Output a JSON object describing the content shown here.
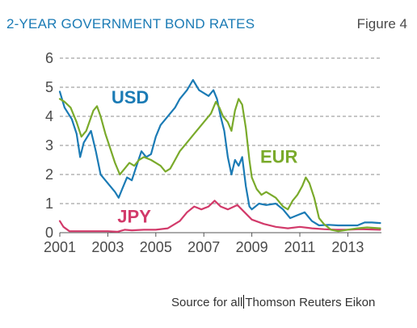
{
  "header": {
    "title": "2-YEAR GOVERNMENT BOND RATES",
    "figure_label": "Figure 4"
  },
  "footer": {
    "source_prefix": "Source for all",
    "source_suffix": "Thomson Reuters Eikon"
  },
  "colors": {
    "USD": "#1b7bb5",
    "EUR": "#7aaa2b",
    "JPY": "#d23a6a",
    "grid": "#8c8c8c",
    "axis_text": "#4a4a4a"
  },
  "chart_data": {
    "type": "line",
    "title": "2-YEAR GOVERNMENT BOND RATES",
    "xlabel": "",
    "ylabel": "",
    "xlim": [
      2001,
      2014.4
    ],
    "ylim": [
      0,
      6
    ],
    "x_ticks": [
      "2001",
      "2003",
      "2005",
      "2007",
      "2009",
      "2011",
      "2013"
    ],
    "y_ticks": [
      "0",
      "1",
      "2",
      "3",
      "4",
      "5",
      "6"
    ],
    "grid": true,
    "legend": "inline labels",
    "series": [
      {
        "name": "USD",
        "points": [
          [
            2001.0,
            4.85
          ],
          [
            2001.2,
            4.3
          ],
          [
            2001.5,
            3.9
          ],
          [
            2001.7,
            3.4
          ],
          [
            2001.85,
            2.6
          ],
          [
            2002.0,
            3.1
          ],
          [
            2002.3,
            3.5
          ],
          [
            2002.5,
            2.8
          ],
          [
            2002.7,
            2.0
          ],
          [
            2002.9,
            1.8
          ],
          [
            2003.1,
            1.6
          ],
          [
            2003.3,
            1.4
          ],
          [
            2003.45,
            1.2
          ],
          [
            2003.6,
            1.5
          ],
          [
            2003.8,
            1.9
          ],
          [
            2004.0,
            1.8
          ],
          [
            2004.2,
            2.3
          ],
          [
            2004.4,
            2.8
          ],
          [
            2004.6,
            2.6
          ],
          [
            2004.8,
            2.7
          ],
          [
            2005.0,
            3.3
          ],
          [
            2005.2,
            3.7
          ],
          [
            2005.4,
            3.9
          ],
          [
            2005.6,
            4.1
          ],
          [
            2005.8,
            4.3
          ],
          [
            2006.0,
            4.6
          ],
          [
            2006.3,
            4.9
          ],
          [
            2006.55,
            5.25
          ],
          [
            2006.8,
            4.9
          ],
          [
            2007.0,
            4.8
          ],
          [
            2007.2,
            4.7
          ],
          [
            2007.4,
            4.9
          ],
          [
            2007.55,
            4.6
          ],
          [
            2007.7,
            4.0
          ],
          [
            2007.85,
            3.5
          ],
          [
            2008.0,
            2.6
          ],
          [
            2008.15,
            2.0
          ],
          [
            2008.3,
            2.5
          ],
          [
            2008.45,
            2.3
          ],
          [
            2008.6,
            2.6
          ],
          [
            2008.75,
            1.6
          ],
          [
            2008.9,
            0.9
          ],
          [
            2009.0,
            0.8
          ],
          [
            2009.3,
            1.0
          ],
          [
            2009.6,
            0.95
          ],
          [
            2010.0,
            1.0
          ],
          [
            2010.3,
            0.8
          ],
          [
            2010.6,
            0.5
          ],
          [
            2010.9,
            0.6
          ],
          [
            2011.2,
            0.7
          ],
          [
            2011.5,
            0.4
          ],
          [
            2011.8,
            0.25
          ],
          [
            2012.2,
            0.27
          ],
          [
            2012.6,
            0.25
          ],
          [
            2013.0,
            0.25
          ],
          [
            2013.4,
            0.25
          ],
          [
            2013.7,
            0.35
          ],
          [
            2014.0,
            0.35
          ],
          [
            2014.35,
            0.33
          ]
        ]
      },
      {
        "name": "EUR",
        "points": [
          [
            2001.0,
            4.6
          ],
          [
            2001.2,
            4.5
          ],
          [
            2001.45,
            4.3
          ],
          [
            2001.7,
            3.8
          ],
          [
            2001.9,
            3.3
          ],
          [
            2002.1,
            3.5
          ],
          [
            2002.4,
            4.2
          ],
          [
            2002.55,
            4.35
          ],
          [
            2002.7,
            4.0
          ],
          [
            2002.9,
            3.4
          ],
          [
            2003.1,
            2.9
          ],
          [
            2003.3,
            2.4
          ],
          [
            2003.5,
            2.0
          ],
          [
            2003.7,
            2.2
          ],
          [
            2003.9,
            2.4
          ],
          [
            2004.1,
            2.3
          ],
          [
            2004.3,
            2.5
          ],
          [
            2004.5,
            2.6
          ],
          [
            2004.8,
            2.5
          ],
          [
            2005.0,
            2.4
          ],
          [
            2005.2,
            2.3
          ],
          [
            2005.4,
            2.1
          ],
          [
            2005.6,
            2.2
          ],
          [
            2005.8,
            2.5
          ],
          [
            2006.0,
            2.8
          ],
          [
            2006.3,
            3.1
          ],
          [
            2006.6,
            3.4
          ],
          [
            2006.9,
            3.7
          ],
          [
            2007.1,
            3.9
          ],
          [
            2007.3,
            4.1
          ],
          [
            2007.5,
            4.5
          ],
          [
            2007.65,
            4.3
          ],
          [
            2007.8,
            4.0
          ],
          [
            2008.0,
            3.8
          ],
          [
            2008.15,
            3.5
          ],
          [
            2008.3,
            4.2
          ],
          [
            2008.45,
            4.6
          ],
          [
            2008.6,
            4.4
          ],
          [
            2008.75,
            3.6
          ],
          [
            2008.9,
            2.5
          ],
          [
            2009.0,
            1.9
          ],
          [
            2009.2,
            1.5
          ],
          [
            2009.4,
            1.3
          ],
          [
            2009.6,
            1.4
          ],
          [
            2009.8,
            1.3
          ],
          [
            2010.0,
            1.2
          ],
          [
            2010.3,
            0.9
          ],
          [
            2010.5,
            0.8
          ],
          [
            2010.7,
            1.1
          ],
          [
            2010.9,
            1.3
          ],
          [
            2011.1,
            1.6
          ],
          [
            2011.25,
            1.9
          ],
          [
            2011.4,
            1.7
          ],
          [
            2011.6,
            1.2
          ],
          [
            2011.8,
            0.5
          ],
          [
            2012.0,
            0.3
          ],
          [
            2012.3,
            0.1
          ],
          [
            2012.6,
            0.05
          ],
          [
            2013.0,
            0.1
          ],
          [
            2013.4,
            0.15
          ],
          [
            2013.8,
            0.18
          ],
          [
            2014.35,
            0.15
          ]
        ]
      },
      {
        "name": "JPY",
        "points": [
          [
            2001.0,
            0.4
          ],
          [
            2001.15,
            0.2
          ],
          [
            2001.4,
            0.05
          ],
          [
            2002.0,
            0.05
          ],
          [
            2003.0,
            0.05
          ],
          [
            2003.4,
            0.03
          ],
          [
            2003.7,
            0.1
          ],
          [
            2004.0,
            0.08
          ],
          [
            2004.5,
            0.1
          ],
          [
            2005.0,
            0.1
          ],
          [
            2005.5,
            0.15
          ],
          [
            2006.0,
            0.4
          ],
          [
            2006.3,
            0.7
          ],
          [
            2006.6,
            0.9
          ],
          [
            2006.9,
            0.8
          ],
          [
            2007.2,
            0.9
          ],
          [
            2007.45,
            1.1
          ],
          [
            2007.7,
            0.9
          ],
          [
            2008.0,
            0.8
          ],
          [
            2008.4,
            0.95
          ],
          [
            2008.7,
            0.7
          ],
          [
            2009.0,
            0.45
          ],
          [
            2009.5,
            0.3
          ],
          [
            2010.0,
            0.2
          ],
          [
            2010.5,
            0.15
          ],
          [
            2011.0,
            0.2
          ],
          [
            2011.5,
            0.15
          ],
          [
            2012.0,
            0.12
          ],
          [
            2012.5,
            0.1
          ],
          [
            2013.0,
            0.1
          ],
          [
            2013.5,
            0.12
          ],
          [
            2014.35,
            0.1
          ]
        ]
      }
    ],
    "annotations": [
      {
        "text": "USD",
        "series": "USD"
      },
      {
        "text": "EUR",
        "series": "EUR"
      },
      {
        "text": "JPY",
        "series": "JPY"
      }
    ]
  }
}
